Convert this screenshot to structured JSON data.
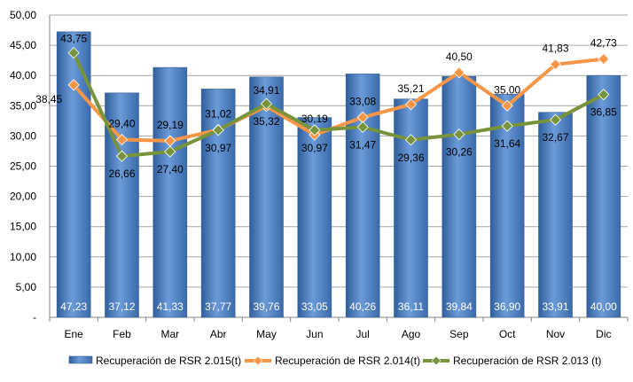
{
  "chart_data": {
    "type": "bar",
    "categories": [
      "Ene",
      "Feb",
      "Mar",
      "Abr",
      "May",
      "Jun",
      "Jul",
      "Ago",
      "Sep",
      "Oct",
      "Nov",
      "Dic"
    ],
    "y_ticks": [
      "-",
      "5,00",
      "10,00",
      "15,00",
      "20,00",
      "25,00",
      "30,00",
      "35,00",
      "40,00",
      "45,00",
      "50,00"
    ],
    "ylim": [
      0,
      50
    ],
    "grid": true,
    "legend_position": "bottom",
    "series": [
      {
        "name": "Recuperación de RSR 2.015(t)",
        "kind": "bar",
        "color": "#4f81bd",
        "values": [
          47.23,
          37.12,
          41.33,
          37.77,
          39.76,
          33.05,
          40.26,
          36.11,
          39.84,
          36.9,
          33.91,
          40.0
        ],
        "labels": [
          "47,23",
          "37,12",
          "41,33",
          "37,77",
          "39,76",
          "33,05",
          "40,26",
          "36,11",
          "39,84",
          "36,90",
          "33,91",
          "40,00"
        ]
      },
      {
        "name": "Recuperación de RSR 2.014(t)",
        "kind": "line",
        "color": "#f79646",
        "values": [
          38.45,
          29.4,
          29.19,
          31.02,
          34.91,
          30.19,
          33.08,
          35.21,
          40.5,
          35.0,
          41.83,
          42.73
        ],
        "labels": [
          "38,45",
          "29,40",
          "29,19",
          "31,02",
          "34,91",
          "30,19",
          "33,08",
          "35,21",
          "40,50",
          "35,00",
          "41,83",
          "42,73"
        ]
      },
      {
        "name": "Recuperación de RSR 2.013 (t)",
        "kind": "line",
        "color": "#77933c",
        "values": [
          43.75,
          26.66,
          27.4,
          30.97,
          35.32,
          30.97,
          31.47,
          29.36,
          30.26,
          31.64,
          32.67,
          36.85
        ],
        "labels": [
          "43,75",
          "26,66",
          "27,40",
          "30,97",
          "35,32",
          "30,97",
          "31,47",
          "29,36",
          "30,26",
          "31,64",
          "32,67",
          "36,85"
        ]
      }
    ]
  }
}
